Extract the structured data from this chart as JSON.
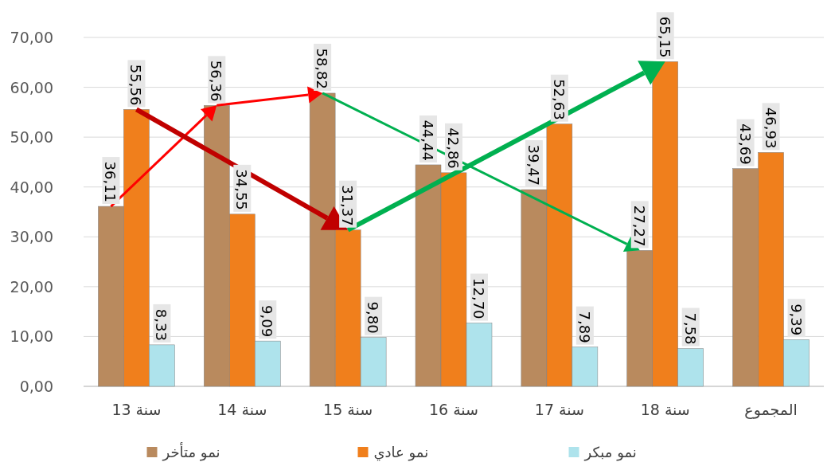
{
  "chart_data": {
    "type": "bar",
    "categories": [
      "13 سنة",
      "14 سنة",
      "15 سنة",
      "16 سنة",
      "17 سنة",
      "18 سنة",
      "المجموع"
    ],
    "series": [
      {
        "name": "نمو متأخر",
        "color": "#b98a5e",
        "values": [
          36.11,
          56.36,
          58.82,
          44.44,
          39.47,
          27.27,
          43.69
        ],
        "value_labels": [
          "36,11",
          "56,36",
          "58,82",
          "44,44",
          "39,47",
          "27,27",
          "43,69"
        ]
      },
      {
        "name": "نمو عادي",
        "color": "#f07f1c",
        "values": [
          55.56,
          34.55,
          31.37,
          42.86,
          52.63,
          65.15,
          46.93
        ],
        "value_labels": [
          "55,56",
          "34,55",
          "31,37",
          "42,86",
          "52,63",
          "65,15",
          "46,93"
        ]
      },
      {
        "name": "نمو مبكر",
        "color": "#aee3ec",
        "values": [
          8.33,
          9.09,
          9.8,
          12.7,
          7.89,
          7.58,
          9.39
        ],
        "value_labels": [
          "8,33",
          "9,09",
          "9,80",
          "12,70",
          "7,89",
          "7,58",
          "9,39"
        ]
      }
    ],
    "ylim": [
      0,
      70
    ],
    "yticks": [
      {
        "value": 0,
        "label": "0,00"
      },
      {
        "value": 10,
        "label": "10,00"
      },
      {
        "value": 20,
        "label": "20,00"
      },
      {
        "value": 30,
        "label": "30,00"
      },
      {
        "value": 40,
        "label": "40,00"
      },
      {
        "value": 50,
        "label": "50,00"
      },
      {
        "value": 60,
        "label": "60,00"
      },
      {
        "value": 70,
        "label": "70,00"
      }
    ],
    "grid": "y",
    "legend": "bottom"
  }
}
